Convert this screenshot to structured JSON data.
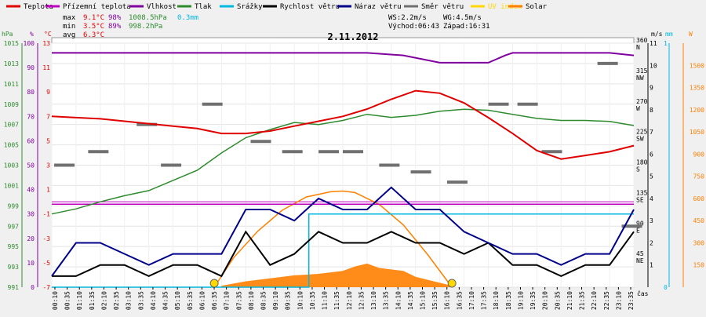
{
  "legend": [
    {
      "label": "Teplota",
      "color": "#e00000"
    },
    {
      "label": "Přízemní teplota",
      "color": "#c000c0"
    },
    {
      "label": "Vlhkost",
      "color": "#8000a0"
    },
    {
      "label": "Tlak",
      "color": "#2e8b2e"
    },
    {
      "label": "Srážky",
      "color": "#00b8e0"
    },
    {
      "label": "Rychlost větru",
      "color": "#000000"
    },
    {
      "label": "Náraz větru",
      "color": "#00008b"
    },
    {
      "label": "Směr větru",
      "color": "#707070"
    },
    {
      "label": "UV index",
      "color": "#ffd800"
    },
    {
      "label": "Solar",
      "color": "#ff8000"
    }
  ],
  "stats": {
    "max_label": "max",
    "max_temp": "9.1°C",
    "max_hum": "98%",
    "max_press": "1008.5hPa",
    "max_rain": "0.3mm",
    "min_label": "min",
    "min_temp": "3.5°C",
    "min_hum": "89%",
    "min_press": "998.2hPa",
    "avg_label": "avg",
    "avg_temp": "6.3°C"
  },
  "wind_info": {
    "ws": "WS:2.2m/s",
    "wg": "WG:4.5m/s",
    "sunrise": "Východ:06:43",
    "sunset": "Západ:16:31"
  },
  "chart_data": {
    "type": "line",
    "title": "2.11.2012",
    "xlabel": "čas",
    "x_tick_labels": [
      "00:10",
      "00:35",
      "01:10",
      "01:35",
      "02:10",
      "02:35",
      "03:10",
      "03:35",
      "04:10",
      "04:35",
      "05:10",
      "05:35",
      "06:10",
      "06:35",
      "07:10",
      "07:35",
      "08:10",
      "08:35",
      "09:10",
      "09:35",
      "10:10",
      "10:35",
      "11:10",
      "11:35",
      "12:10",
      "12:35",
      "13:10",
      "13:35",
      "14:10",
      "14:35",
      "15:10",
      "15:35",
      "16:10",
      "16:35",
      "17:10",
      "17:35",
      "18:10",
      "18:35",
      "19:10",
      "19:35",
      "20:10",
      "20:35",
      "21:10",
      "21:35",
      "22:10",
      "22:35",
      "23:10",
      "23:35"
    ],
    "axes": {
      "pressure": {
        "unit": "hPa",
        "ticks": [
          "1015",
          "1013",
          "1011",
          "1009",
          "1007",
          "1005",
          "1003",
          "1001",
          "999",
          "997",
          "995",
          "993",
          "991"
        ],
        "range": [
          991,
          1015
        ]
      },
      "humidity": {
        "unit": "%",
        "ticks": [
          "100",
          "90",
          "80",
          "70",
          "60",
          "50",
          "40",
          "30",
          "20",
          "10",
          "0"
        ],
        "range": [
          0,
          100
        ]
      },
      "temperature": {
        "unit": "°C",
        "ticks": [
          "13",
          "11",
          "9",
          "7",
          "5",
          "3",
          "1",
          "-1",
          "-3",
          "-5",
          "-7"
        ],
        "range": [
          -7,
          13
        ]
      },
      "wind_dir": {
        "ticks": [
          "360 N",
          "315 NW",
          "270 W",
          "225 SW",
          "180 S",
          "135 SE",
          "90 E",
          "45 NE"
        ],
        "range": [
          0,
          360
        ]
      },
      "wind_speed": {
        "unit": "m/s",
        "ticks": [
          "11",
          "10",
          "9",
          "8",
          "7",
          "6",
          "5",
          "4",
          "3",
          "2",
          "1"
        ],
        "range": [
          0,
          11
        ]
      },
      "rain": {
        "unit": "mm",
        "ticks": [
          "1",
          "0"
        ],
        "range": [
          0,
          1
        ]
      },
      "solar": {
        "unit": "W",
        "ticks": [
          "1500",
          "1350",
          "1200",
          "1050",
          "900",
          "750",
          "600",
          "450",
          "300",
          "150"
        ],
        "range": [
          0,
          1650
        ]
      }
    },
    "series": [
      {
        "name": "Teplota",
        "axis": "temperature",
        "color": "#e00000",
        "x": [
          0,
          1,
          2,
          3,
          4,
          5,
          6,
          7,
          8,
          9,
          10,
          11,
          12,
          13,
          14,
          15,
          16,
          17,
          18,
          19,
          20,
          21,
          22,
          23,
          24
        ],
        "y": [
          7.0,
          6.9,
          6.8,
          6.6,
          6.4,
          6.2,
          6.0,
          5.6,
          5.6,
          5.8,
          6.2,
          6.6,
          7.0,
          7.6,
          8.4,
          9.1,
          8.9,
          8.1,
          6.9,
          5.6,
          4.2,
          3.5,
          3.8,
          4.1,
          4.6
        ]
      },
      {
        "name": "Přízemní teplota",
        "axis": "temperature",
        "color": "#c000c0",
        "x": [
          0,
          24
        ],
        "y": [
          -0.2,
          -0.2
        ]
      },
      {
        "name": "Vlhkost",
        "axis": "humidity",
        "color": "#8000a0",
        "x": [
          0,
          6,
          10.2,
          13,
          14.5,
          16,
          17,
          18,
          18.7,
          19,
          20,
          23,
          24
        ],
        "y": [
          96,
          96,
          96,
          96,
          95,
          92,
          92,
          92,
          95,
          96,
          96,
          96,
          95
        ]
      },
      {
        "name": "Tlak",
        "axis": "pressure",
        "color": "#2e8b2e",
        "x": [
          0,
          1,
          2,
          3,
          4,
          5,
          6,
          7,
          8,
          9,
          10,
          11,
          12,
          13,
          14,
          15,
          16,
          17,
          18,
          19,
          20,
          21,
          22,
          23,
          24
        ],
        "y": [
          998.2,
          998.7,
          999.4,
          1000.0,
          1000.5,
          1001.5,
          1002.5,
          1004.2,
          1005.7,
          1006.5,
          1007.2,
          1007.0,
          1007.4,
          1008.0,
          1007.7,
          1007.9,
          1008.3,
          1008.5,
          1008.4,
          1008.0,
          1007.6,
          1007.4,
          1007.4,
          1007.3,
          1006.9
        ]
      },
      {
        "name": "Rychlost větru",
        "axis": "wind_speed",
        "color": "#000000",
        "x": [
          0,
          1,
          2,
          3,
          4,
          5,
          6,
          7,
          8,
          9,
          10,
          11,
          12,
          13,
          14,
          15,
          16,
          17,
          18,
          19,
          20,
          21,
          22,
          23,
          24
        ],
        "y": [
          0.5,
          0.5,
          1.0,
          1.0,
          0.5,
          1.0,
          1.0,
          0.5,
          2.5,
          1.0,
          1.5,
          2.5,
          2.0,
          2.0,
          2.5,
          2.0,
          2.0,
          1.5,
          2.0,
          1.0,
          1.0,
          0.5,
          1.0,
          1.0,
          2.5
        ]
      },
      {
        "name": "Náraz větru",
        "axis": "wind_speed",
        "color": "#00008b",
        "x": [
          0,
          1,
          2,
          3,
          4,
          5,
          6,
          7,
          8,
          9,
          10,
          11,
          12,
          13,
          14,
          15,
          16,
          17,
          18,
          19,
          20,
          21,
          22,
          23,
          24
        ],
        "y": [
          0.5,
          2.0,
          2.0,
          1.5,
          1.0,
          1.5,
          1.5,
          1.5,
          3.5,
          3.5,
          3.0,
          4.0,
          3.5,
          3.5,
          4.5,
          3.5,
          3.5,
          2.5,
          2.0,
          1.5,
          1.5,
          1.0,
          1.5,
          1.5,
          3.5
        ]
      },
      {
        "name": "Srážky",
        "axis": "rain",
        "color": "#00b8e0",
        "x": [
          0,
          10.6,
          10.6,
          24
        ],
        "y": [
          0,
          0,
          0.3,
          0.3
        ]
      },
      {
        "name": "Solar",
        "axis": "solar",
        "color": "#ff8000",
        "x": [
          6.7,
          7.5,
          8.5,
          9.5,
          10.5,
          11.5,
          12.0,
          12.5,
          13.5,
          14.5,
          15.5,
          16.5
        ],
        "y": [
          0,
          200,
          380,
          520,
          610,
          645,
          650,
          640,
          560,
          420,
          220,
          0
        ]
      }
    ],
    "solar_measured": {
      "x": [
        7,
        8,
        9,
        10,
        11,
        12,
        12.5,
        13,
        13.5,
        14,
        14.5,
        15,
        15.5,
        16,
        16.5
      ],
      "y": [
        10,
        40,
        60,
        80,
        90,
        110,
        140,
        160,
        130,
        120,
        110,
        70,
        50,
        30,
        10
      ]
    },
    "wind_direction": {
      "x": [
        0.1,
        1.5,
        3.5,
        4.5,
        6.2,
        8.2,
        9.5,
        11,
        12,
        13.5,
        14.8,
        16.3,
        18,
        19.2,
        20.2,
        22.5,
        23.5
      ],
      "y": [
        180,
        200,
        240,
        180,
        270,
        215,
        200,
        200,
        200,
        180,
        170,
        155,
        270,
        270,
        200,
        330,
        90
      ]
    },
    "sun_markers": [
      {
        "x": 6.7
      },
      {
        "x": 16.5
      }
    ]
  }
}
